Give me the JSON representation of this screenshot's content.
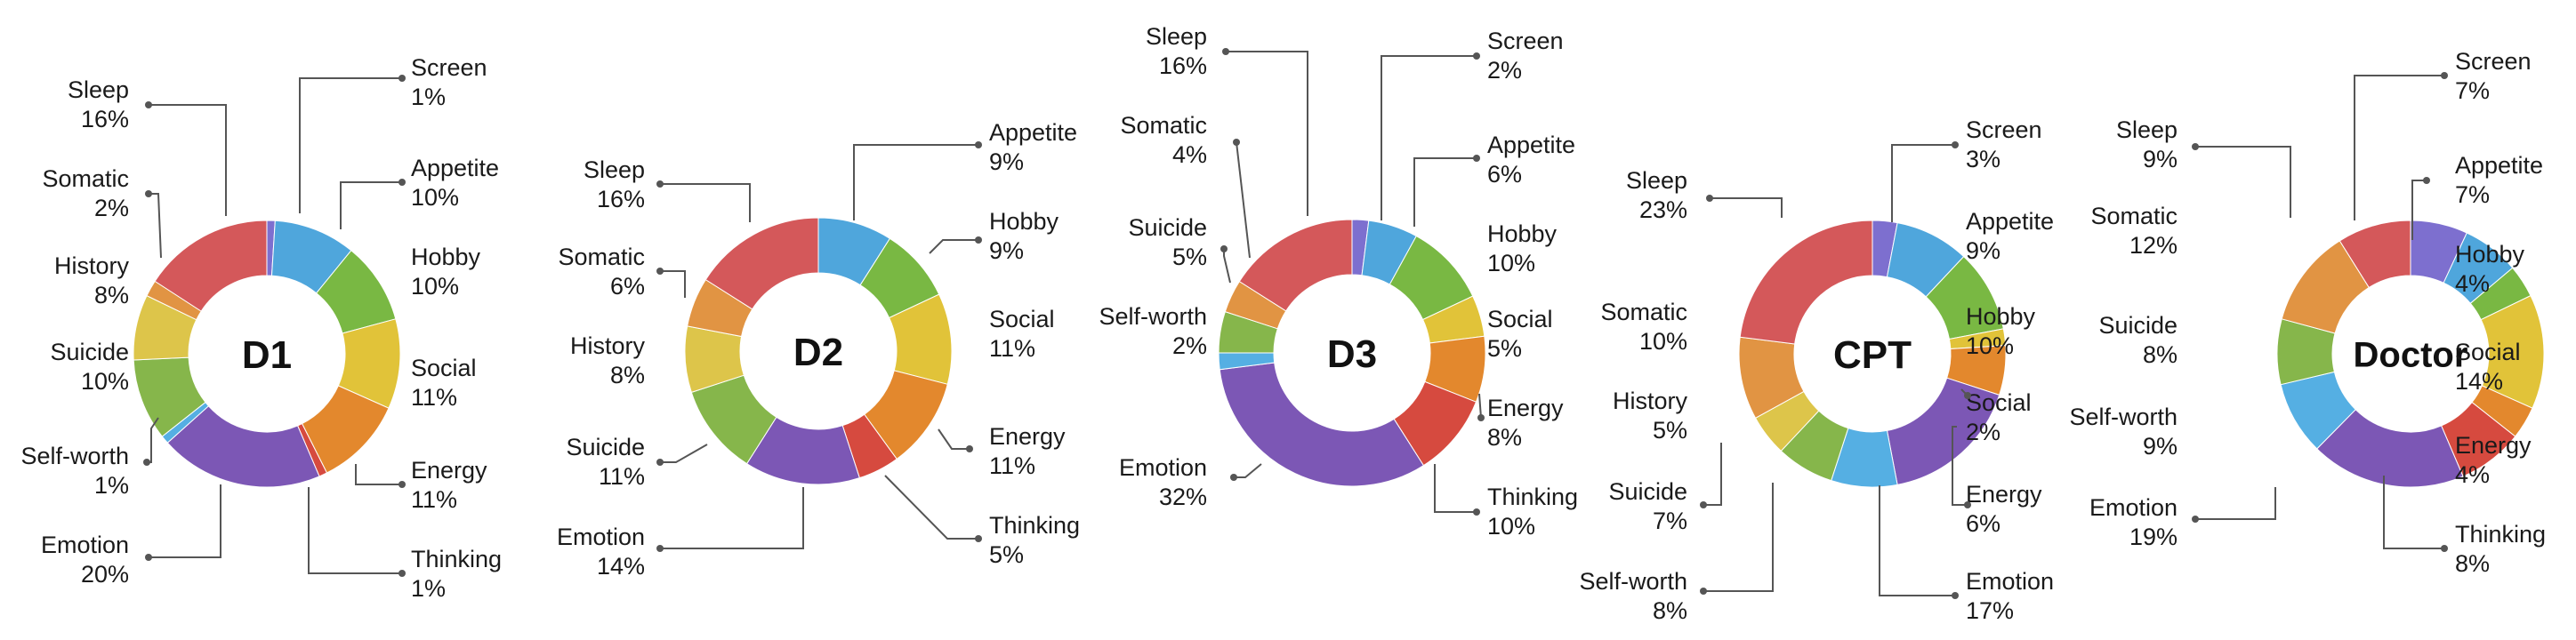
{
  "colors": {
    "Screen": "#7d6fcf",
    "Appetite": "#4fa6dc",
    "Hobby": "#79b843",
    "Social": "#e1c339",
    "Energy": "#e3882d",
    "Thinking": "#d64a3f",
    "Emotion": "#7c57b5",
    "Self-worth": "#55afe3",
    "Suicide": "#86b64b",
    "History": "#ddc54a",
    "Somatic": "#e19443",
    "Sleep": "#d4585a"
  },
  "chart_data": [
    {
      "type": "pie",
      "title": "D1",
      "categories": [
        "Screen",
        "Appetite",
        "Hobby",
        "Social",
        "Energy",
        "Thinking",
        "Emotion",
        "Self-worth",
        "Suicide",
        "History",
        "Somatic",
        "Sleep"
      ],
      "values": [
        1,
        10,
        10,
        11,
        11,
        1,
        20,
        1,
        10,
        8,
        2,
        16
      ],
      "labels": [
        {
          "name": "Screen",
          "value": "1%"
        },
        {
          "name": "Appetite",
          "value": "10%"
        },
        {
          "name": "Hobby",
          "value": "10%"
        },
        {
          "name": "Social",
          "value": "11%"
        },
        {
          "name": "Energy",
          "value": "11%"
        },
        {
          "name": "Thinking",
          "value": "1%"
        },
        {
          "name": "Emotion",
          "value": "20%"
        },
        {
          "name": "Self-worth",
          "value": "1%"
        },
        {
          "name": "Suicide",
          "value": "10%"
        },
        {
          "name": "History",
          "value": "8%"
        },
        {
          "name": "Somatic",
          "value": "2%"
        },
        {
          "name": "Sleep",
          "value": "16%"
        }
      ]
    },
    {
      "type": "pie",
      "title": "D2",
      "categories": [
        "Appetite",
        "Hobby",
        "Social",
        "Energy",
        "Thinking",
        "Emotion",
        "Suicide",
        "History",
        "Somatic",
        "Sleep"
      ],
      "values": [
        9,
        9,
        11,
        11,
        5,
        14,
        11,
        8,
        6,
        16
      ],
      "labels": [
        {
          "name": "Appetite",
          "value": "9%"
        },
        {
          "name": "Hobby",
          "value": "9%"
        },
        {
          "name": "Social",
          "value": "11%"
        },
        {
          "name": "Energy",
          "value": "11%"
        },
        {
          "name": "Thinking",
          "value": "5%"
        },
        {
          "name": "Emotion",
          "value": "14%"
        },
        {
          "name": "Suicide",
          "value": "11%"
        },
        {
          "name": "History",
          "value": "8%"
        },
        {
          "name": "Somatic",
          "value": "6%"
        },
        {
          "name": "Sleep",
          "value": "16%"
        }
      ]
    },
    {
      "type": "pie",
      "title": "D3",
      "categories": [
        "Screen",
        "Appetite",
        "Hobby",
        "Social",
        "Energy",
        "Thinking",
        "Emotion",
        "Self-worth",
        "Suicide",
        "Somatic",
        "Sleep"
      ],
      "values": [
        2,
        6,
        10,
        5,
        8,
        10,
        32,
        2,
        5,
        4,
        16
      ],
      "labels": [
        {
          "name": "Screen",
          "value": "2%"
        },
        {
          "name": "Appetite",
          "value": "6%"
        },
        {
          "name": "Hobby",
          "value": "10%"
        },
        {
          "name": "Social",
          "value": "5%"
        },
        {
          "name": "Energy",
          "value": "8%"
        },
        {
          "name": "Thinking",
          "value": "10%"
        },
        {
          "name": "Emotion",
          "value": "32%"
        },
        {
          "name": "Self-worth",
          "value": "2%"
        },
        {
          "name": "Suicide",
          "value": "5%"
        },
        {
          "name": "Somatic",
          "value": "4%"
        },
        {
          "name": "Sleep",
          "value": "16%"
        }
      ]
    },
    {
      "type": "pie",
      "title": "CPT",
      "categories": [
        "Screen",
        "Appetite",
        "Hobby",
        "Social",
        "Energy",
        "Emotion",
        "Self-worth",
        "Suicide",
        "History",
        "Somatic",
        "Sleep"
      ],
      "values": [
        3,
        9,
        10,
        2,
        6,
        17,
        8,
        7,
        5,
        10,
        23
      ],
      "labels": [
        {
          "name": "Screen",
          "value": "3%"
        },
        {
          "name": "Appetite",
          "value": "9%"
        },
        {
          "name": "Hobby",
          "value": "10%"
        },
        {
          "name": "Social",
          "value": "2%"
        },
        {
          "name": "Energy",
          "value": "6%"
        },
        {
          "name": "Emotion",
          "value": "17%"
        },
        {
          "name": "Self-worth",
          "value": "8%"
        },
        {
          "name": "Suicide",
          "value": "7%"
        },
        {
          "name": "History",
          "value": "5%"
        },
        {
          "name": "Somatic",
          "value": "10%"
        },
        {
          "name": "Sleep",
          "value": "23%"
        }
      ]
    },
    {
      "type": "pie",
      "title": "Doctor",
      "categories": [
        "Screen",
        "Appetite",
        "Hobby",
        "Social",
        "Energy",
        "Thinking",
        "Emotion",
        "Self-worth",
        "Suicide",
        "Somatic",
        "Sleep"
      ],
      "values": [
        7,
        7,
        4,
        14,
        4,
        8,
        19,
        9,
        8,
        12,
        9
      ],
      "labels": [
        {
          "name": "Screen",
          "value": "7%"
        },
        {
          "name": "Appetite",
          "value": "7%"
        },
        {
          "name": "Hobby",
          "value": "4%"
        },
        {
          "name": "Social",
          "value": "14%"
        },
        {
          "name": "Energy",
          "value": "4%"
        },
        {
          "name": "Thinking",
          "value": "8%"
        },
        {
          "name": "Emotion",
          "value": "19%"
        },
        {
          "name": "Self-worth",
          "value": "9%"
        },
        {
          "name": "Suicide",
          "value": "8%"
        },
        {
          "name": "Somatic",
          "value": "12%"
        },
        {
          "name": "Sleep",
          "value": "9%"
        }
      ]
    }
  ]
}
